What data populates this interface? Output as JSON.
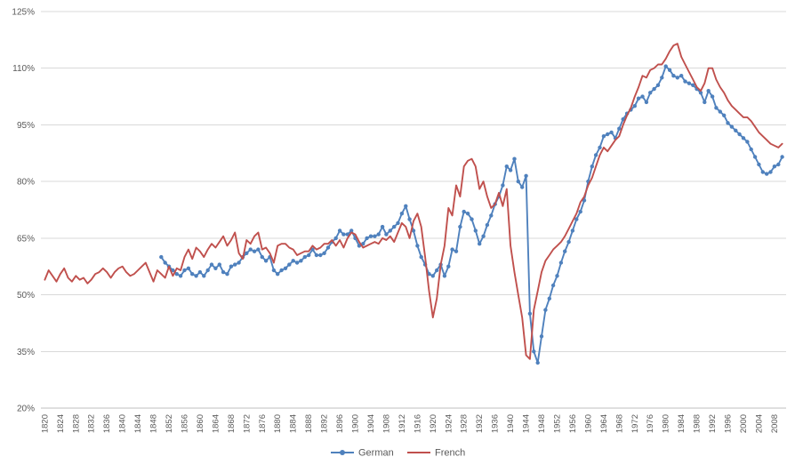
{
  "chart_data": {
    "type": "line",
    "title": "",
    "xlabel": "",
    "ylabel": "",
    "ylim": [
      20,
      125
    ],
    "xlim": [
      1819,
      2011
    ],
    "yticks": [
      20,
      35,
      50,
      65,
      80,
      95,
      110,
      125
    ],
    "ytick_suffix": "%",
    "xticks": [
      1820,
      1824,
      1828,
      1832,
      1836,
      1840,
      1844,
      1848,
      1852,
      1856,
      1860,
      1864,
      1868,
      1872,
      1876,
      1880,
      1884,
      1888,
      1892,
      1896,
      1900,
      1904,
      1908,
      1912,
      1916,
      1920,
      1924,
      1928,
      1932,
      1936,
      1940,
      1944,
      1948,
      1952,
      1956,
      1960,
      1964,
      1968,
      1972,
      1976,
      1980,
      1984,
      1988,
      1992,
      1996,
      2000,
      2004,
      2008
    ],
    "grid": "horizontal",
    "legend_position": "bottom",
    "background": "#FFFFFF",
    "grid_color": "#D9D9D9",
    "axis_line_color": "#BFBFBF",
    "axis_text_color": "#595959",
    "series": [
      {
        "name": "German",
        "color": "#4F81BD",
        "marker": "circle",
        "start_year": 1850,
        "values": [
          60,
          58.5,
          57.5,
          56.5,
          55.5,
          55,
          56.5,
          57,
          55.5,
          55,
          56,
          55,
          56.5,
          58,
          57,
          58,
          56,
          55.5,
          57.5,
          58,
          58.5,
          60,
          61,
          62,
          61.5,
          62,
          60,
          59,
          60,
          56.5,
          55.5,
          56.5,
          57,
          58,
          59,
          58.5,
          59,
          60,
          60.5,
          62,
          60.5,
          60.5,
          61,
          62.5,
          64,
          65,
          67,
          66,
          66,
          67,
          65,
          63,
          63.5,
          65,
          65.5,
          65.5,
          66,
          68,
          66,
          67,
          68,
          69,
          71.5,
          73.5,
          70,
          67,
          63,
          60,
          58,
          55.5,
          55,
          56.5,
          58,
          55,
          57.5,
          62,
          61.5,
          68,
          72,
          71.5,
          70,
          67,
          63.5,
          65.5,
          68.5,
          71,
          74,
          76,
          79,
          84,
          83,
          86,
          80,
          78.5,
          81.5,
          45,
          35,
          32,
          39,
          46,
          49,
          52.5,
          55,
          58.5,
          61.5,
          64,
          67,
          70,
          72,
          75,
          80,
          84,
          87,
          89,
          92,
          92.5,
          93,
          91.5,
          94,
          96.5,
          98,
          99,
          100,
          102,
          102.5,
          101,
          103.5,
          104.5,
          105.5,
          107.5,
          110.5,
          109.5,
          108,
          107.5,
          108,
          106.5,
          106,
          105.5,
          104.5,
          103.5,
          101,
          104,
          102.5,
          99.5,
          98.5,
          97.5,
          95.5,
          94.5,
          93.5,
          92.5,
          91.5,
          90.5,
          88.5,
          86.5,
          84.5,
          82.5,
          82,
          82.5,
          84,
          84.5,
          86.5
        ]
      },
      {
        "name": "French",
        "color": "#C0504D",
        "marker": "none",
        "start_year": 1820,
        "values": [
          54,
          56.5,
          55,
          53.5,
          55.5,
          57,
          54.5,
          53.5,
          55,
          54,
          54.5,
          53,
          54,
          55.5,
          56,
          57,
          56,
          54.5,
          56,
          57,
          57.5,
          56,
          55,
          55.5,
          56.5,
          57.5,
          58.5,
          56,
          53.5,
          56.5,
          55.5,
          54.5,
          57.5,
          55,
          57,
          56.5,
          60,
          62,
          59.5,
          62.5,
          61.5,
          60,
          62,
          63.5,
          62.5,
          64,
          65.5,
          63,
          64.5,
          66.5,
          61,
          59.5,
          64.5,
          63.5,
          65.5,
          66.5,
          62,
          62.5,
          61,
          58.5,
          63,
          63.5,
          63.5,
          62.5,
          62,
          60.5,
          61,
          61.5,
          61.5,
          63,
          62,
          62.5,
          63.5,
          63.5,
          64.5,
          63,
          64.5,
          62.5,
          65,
          66.5,
          66,
          64,
          62.5,
          63,
          63.5,
          64,
          63.5,
          65,
          64.5,
          65.5,
          64,
          66.5,
          69,
          68,
          65,
          69.5,
          71.5,
          68,
          60,
          51,
          44,
          49,
          58,
          63,
          73,
          71,
          79,
          76,
          84,
          85.5,
          86,
          84,
          78,
          80,
          76,
          73,
          74,
          77,
          73.5,
          78,
          63,
          56,
          50,
          44,
          34,
          33,
          46,
          51,
          56,
          59,
          60.5,
          62,
          63,
          64,
          65.5,
          67.5,
          69.5,
          71.5,
          74.5,
          76,
          79,
          81,
          84,
          87,
          89,
          88,
          89.5,
          91,
          92,
          95,
          97.5,
          99.5,
          102.5,
          105,
          108,
          107.5,
          109.5,
          110,
          111,
          111,
          112.5,
          114.5,
          116,
          116.5,
          113,
          111,
          109,
          107,
          105,
          104,
          106,
          110,
          110,
          107,
          105,
          103.5,
          101.5,
          100,
          99,
          98,
          97,
          97,
          96,
          94.5,
          93,
          92,
          91,
          90,
          89.5,
          89,
          90
        ]
      }
    ]
  }
}
